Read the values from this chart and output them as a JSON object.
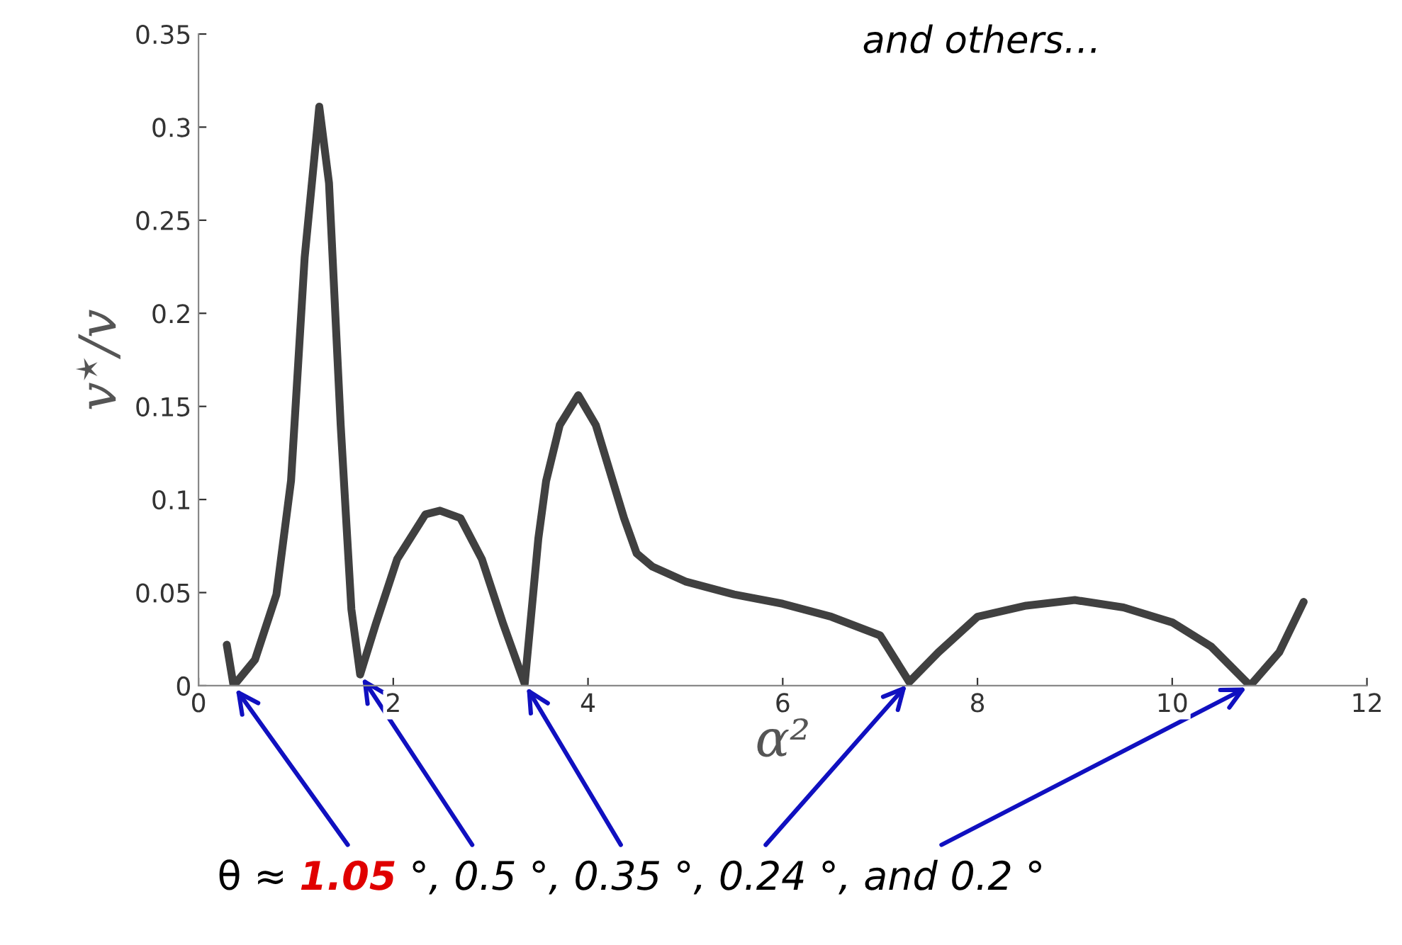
{
  "chart_data": {
    "type": "line",
    "xlabel": "α²",
    "ylabel": "v$^{⋆}$/v",
    "x": [
      0.29,
      0.36,
      0.58,
      0.8,
      0.95,
      1.09,
      1.22,
      1.24,
      1.34,
      1.46,
      1.57,
      1.66,
      1.82,
      2.04,
      2.33,
      2.48,
      2.69,
      2.91,
      3.13,
      3.35,
      3.49,
      3.57,
      3.71,
      3.9,
      4.08,
      4.37,
      4.5,
      4.66,
      5.0,
      5.5,
      6.0,
      6.5,
      7.0,
      7.3,
      7.6,
      8.0,
      8.5,
      9.0,
      9.5,
      10.0,
      10.4,
      10.8,
      11.1,
      11.35
    ],
    "series": [
      {
        "color": "#404040",
        "values": [
          0.022,
          0.0,
          0.014,
          0.049,
          0.11,
          0.23,
          0.3,
          0.311,
          0.27,
          0.14,
          0.041,
          0.006,
          0.033,
          0.068,
          0.092,
          0.094,
          0.09,
          0.068,
          0.033,
          0.001,
          0.079,
          0.11,
          0.14,
          0.156,
          0.14,
          0.09,
          0.071,
          0.064,
          0.056,
          0.049,
          0.044,
          0.037,
          0.027,
          0.002,
          0.018,
          0.037,
          0.043,
          0.046,
          0.042,
          0.034,
          0.021,
          0.0,
          0.018,
          0.045
        ]
      }
    ],
    "xlim": [
      0,
      12
    ],
    "xticks": [
      0,
      2,
      4,
      6,
      8,
      10,
      12
    ],
    "ylim": [
      0,
      0.35
    ],
    "yticks": [
      0,
      0.05,
      0.1,
      0.15,
      0.2,
      0.25,
      0.3,
      0.35
    ],
    "grid": false,
    "legend": false,
    "marker": "none",
    "line_style": "solid",
    "annotations": [
      "and others…",
      "θ ≈ ",
      {
        "text": "1.05",
        "x": 0.36,
        "y": 0.0
      },
      {
        "text": " °, 0.5 °",
        "x": 1.66,
        "y": 0.006
      },
      {
        "text": ", 0.35 °",
        "x": 3.35,
        "y": 0.001
      },
      {
        "text": ", 0.24 °",
        "x": 7.3,
        "y": 0.002
      },
      {
        "text": ", and 0.2 °",
        "x": 10.8,
        "y": 0.0
      }
    ]
  }
}
